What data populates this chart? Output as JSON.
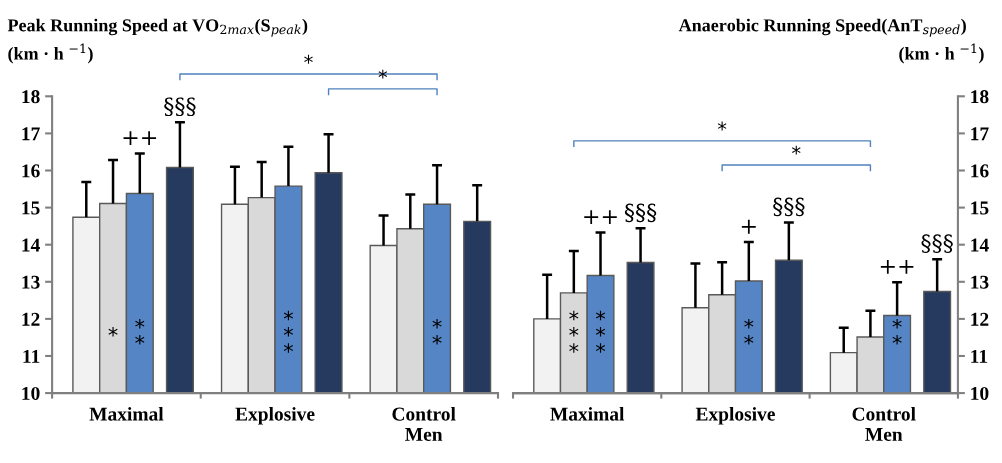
{
  "chart_data": [
    {
      "type": "bar",
      "title": "Peak Running Speed at VO$_{2max}$(S$_{peak}$)",
      "ylabel": "(km · h $^{−1}$)",
      "categories": [
        "Maximal",
        "Explosive",
        "Control\nMen"
      ],
      "ylim": [
        10,
        18
      ],
      "yticks": [
        10,
        11,
        12,
        13,
        14,
        15,
        16,
        17,
        18
      ],
      "grid": false,
      "series": [
        {
          "color": "#f2f2f2",
          "values": [
            14.74,
            15.09,
            13.98
          ],
          "errors": [
            [
              14.74,
              15.69
            ],
            [
              15.09,
              16.1
            ],
            [
              13.98,
              14.79
            ]
          ],
          "value_labels": [
            null,
            null,
            null
          ]
        },
        {
          "color": "#d9d9d9",
          "values": [
            15.11,
            15.27,
            14.43
          ],
          "errors": [
            [
              15.11,
              16.28
            ],
            [
              15.27,
              16.23
            ],
            [
              14.43,
              15.35
            ]
          ],
          "value_labels": [
            null,
            null,
            null
          ]
        },
        {
          "color": "#5585c5",
          "values": [
            15.38,
            15.58,
            15.09
          ],
          "errors": [
            [
              15.38,
              16.46
            ],
            [
              15.58,
              16.64
            ],
            [
              15.09,
              16.14
            ]
          ],
          "value_labels": [
            "++",
            null,
            null
          ]
        },
        {
          "color": "#253a5e",
          "values": [
            16.08,
            15.94,
            14.63
          ],
          "errors": [
            [
              16.08,
              17.3
            ],
            [
              15.94,
              16.98
            ],
            [
              14.63,
              15.6
            ]
          ],
          "value_labels": [
            "§§§",
            null,
            null
          ]
        }
      ],
      "annotations": [
        "*",
        "**",
        "***",
        "**",
        "*",
        "*"
      ]
    },
    {
      "type": "bar",
      "title": "Anaerobic Running Speed(AnT$_{speed}$)",
      "y2label": "(km · h $^{−1}$)",
      "categories": [
        "Maximal",
        "Explosive",
        "Control\nMen"
      ],
      "y2lim": [
        10,
        18
      ],
      "y2ticks": [
        10,
        11,
        12,
        13,
        14,
        15,
        16,
        17,
        18
      ],
      "grid": false,
      "series": [
        {
          "color": "#f2f2f2",
          "axis": "y2",
          "values": [
            12.0,
            12.3,
            11.09
          ],
          "errors": [
            [
              12.0,
              13.19
            ],
            [
              12.3,
              13.49
            ],
            [
              11.09,
              11.76
            ]
          ],
          "value_labels": [
            null,
            null,
            null
          ]
        },
        {
          "color": "#d9d9d9",
          "axis": "y2",
          "values": [
            12.7,
            12.65,
            11.51
          ],
          "errors": [
            [
              12.7,
              13.83
            ],
            [
              12.65,
              13.53
            ],
            [
              11.51,
              12.22
            ]
          ],
          "value_labels": [
            null,
            null,
            null
          ]
        },
        {
          "color": "#5585c5",
          "axis": "y2",
          "values": [
            13.17,
            13.02,
            12.09
          ],
          "errors": [
            [
              13.17,
              14.33
            ],
            [
              13.02,
              14.07
            ],
            [
              12.09,
              12.99
            ]
          ],
          "value_labels": [
            "++",
            "+",
            "++"
          ]
        },
        {
          "color": "#253a5e",
          "axis": "y2",
          "values": [
            13.52,
            13.58,
            12.74
          ],
          "errors": [
            [
              13.52,
              14.44
            ],
            [
              13.58,
              14.6
            ],
            [
              12.74,
              13.61
            ]
          ],
          "value_labels": [
            "§§§",
            "§§§",
            "§§§"
          ]
        }
      ],
      "annotations": [
        "***",
        "***",
        "**",
        "**",
        "*",
        "*"
      ]
    }
  ]
}
